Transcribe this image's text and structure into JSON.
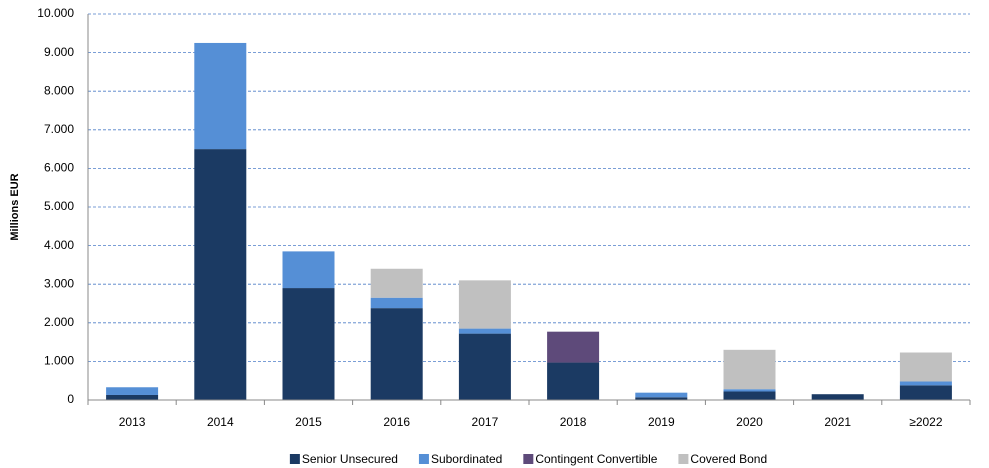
{
  "chart_data": {
    "type": "bar",
    "stacked": true,
    "y_label": "Millions EUR",
    "categories": [
      "2013",
      "2014",
      "2015",
      "2016",
      "2017",
      "2018",
      "2019",
      "2020",
      "2021",
      "≥2022"
    ],
    "series": [
      {
        "name": "Senior Unsecured",
        "color": "#1b3a63",
        "values": [
          130,
          6500,
          2900,
          2380,
          1720,
          970,
          70,
          220,
          150,
          380
        ]
      },
      {
        "name": "Subordinated",
        "color": "#558fd6",
        "values": [
          200,
          2750,
          950,
          270,
          130,
          0,
          120,
          60,
          0,
          100
        ]
      },
      {
        "name": "Contingent Convertible",
        "color": "#5e4a7a",
        "values": [
          0,
          0,
          0,
          0,
          0,
          800,
          0,
          0,
          0,
          0
        ]
      },
      {
        "name": "Covered Bond",
        "color": "#c0c0c0",
        "values": [
          0,
          0,
          0,
          750,
          1250,
          0,
          0,
          1020,
          0,
          750
        ]
      }
    ],
    "ylim": [
      0,
      10000
    ],
    "yticks": [
      0,
      {
        "value": 1000,
        "label": "1.000"
      },
      {
        "value": 2000,
        "label": "2.000"
      },
      {
        "value": 3000,
        "label": "3.000"
      },
      {
        "value": 4000,
        "label": "4.000"
      },
      {
        "value": 5000,
        "label": "5.000"
      },
      {
        "value": 6000,
        "label": "6.000"
      },
      {
        "value": 7000,
        "label": "7.000"
      },
      {
        "value": 8000,
        "label": "8.000"
      },
      {
        "value": 9000,
        "label": "9.000"
      },
      {
        "value": 10000,
        "label": "10.000"
      }
    ],
    "grid": true,
    "legend_position": "bottom"
  }
}
